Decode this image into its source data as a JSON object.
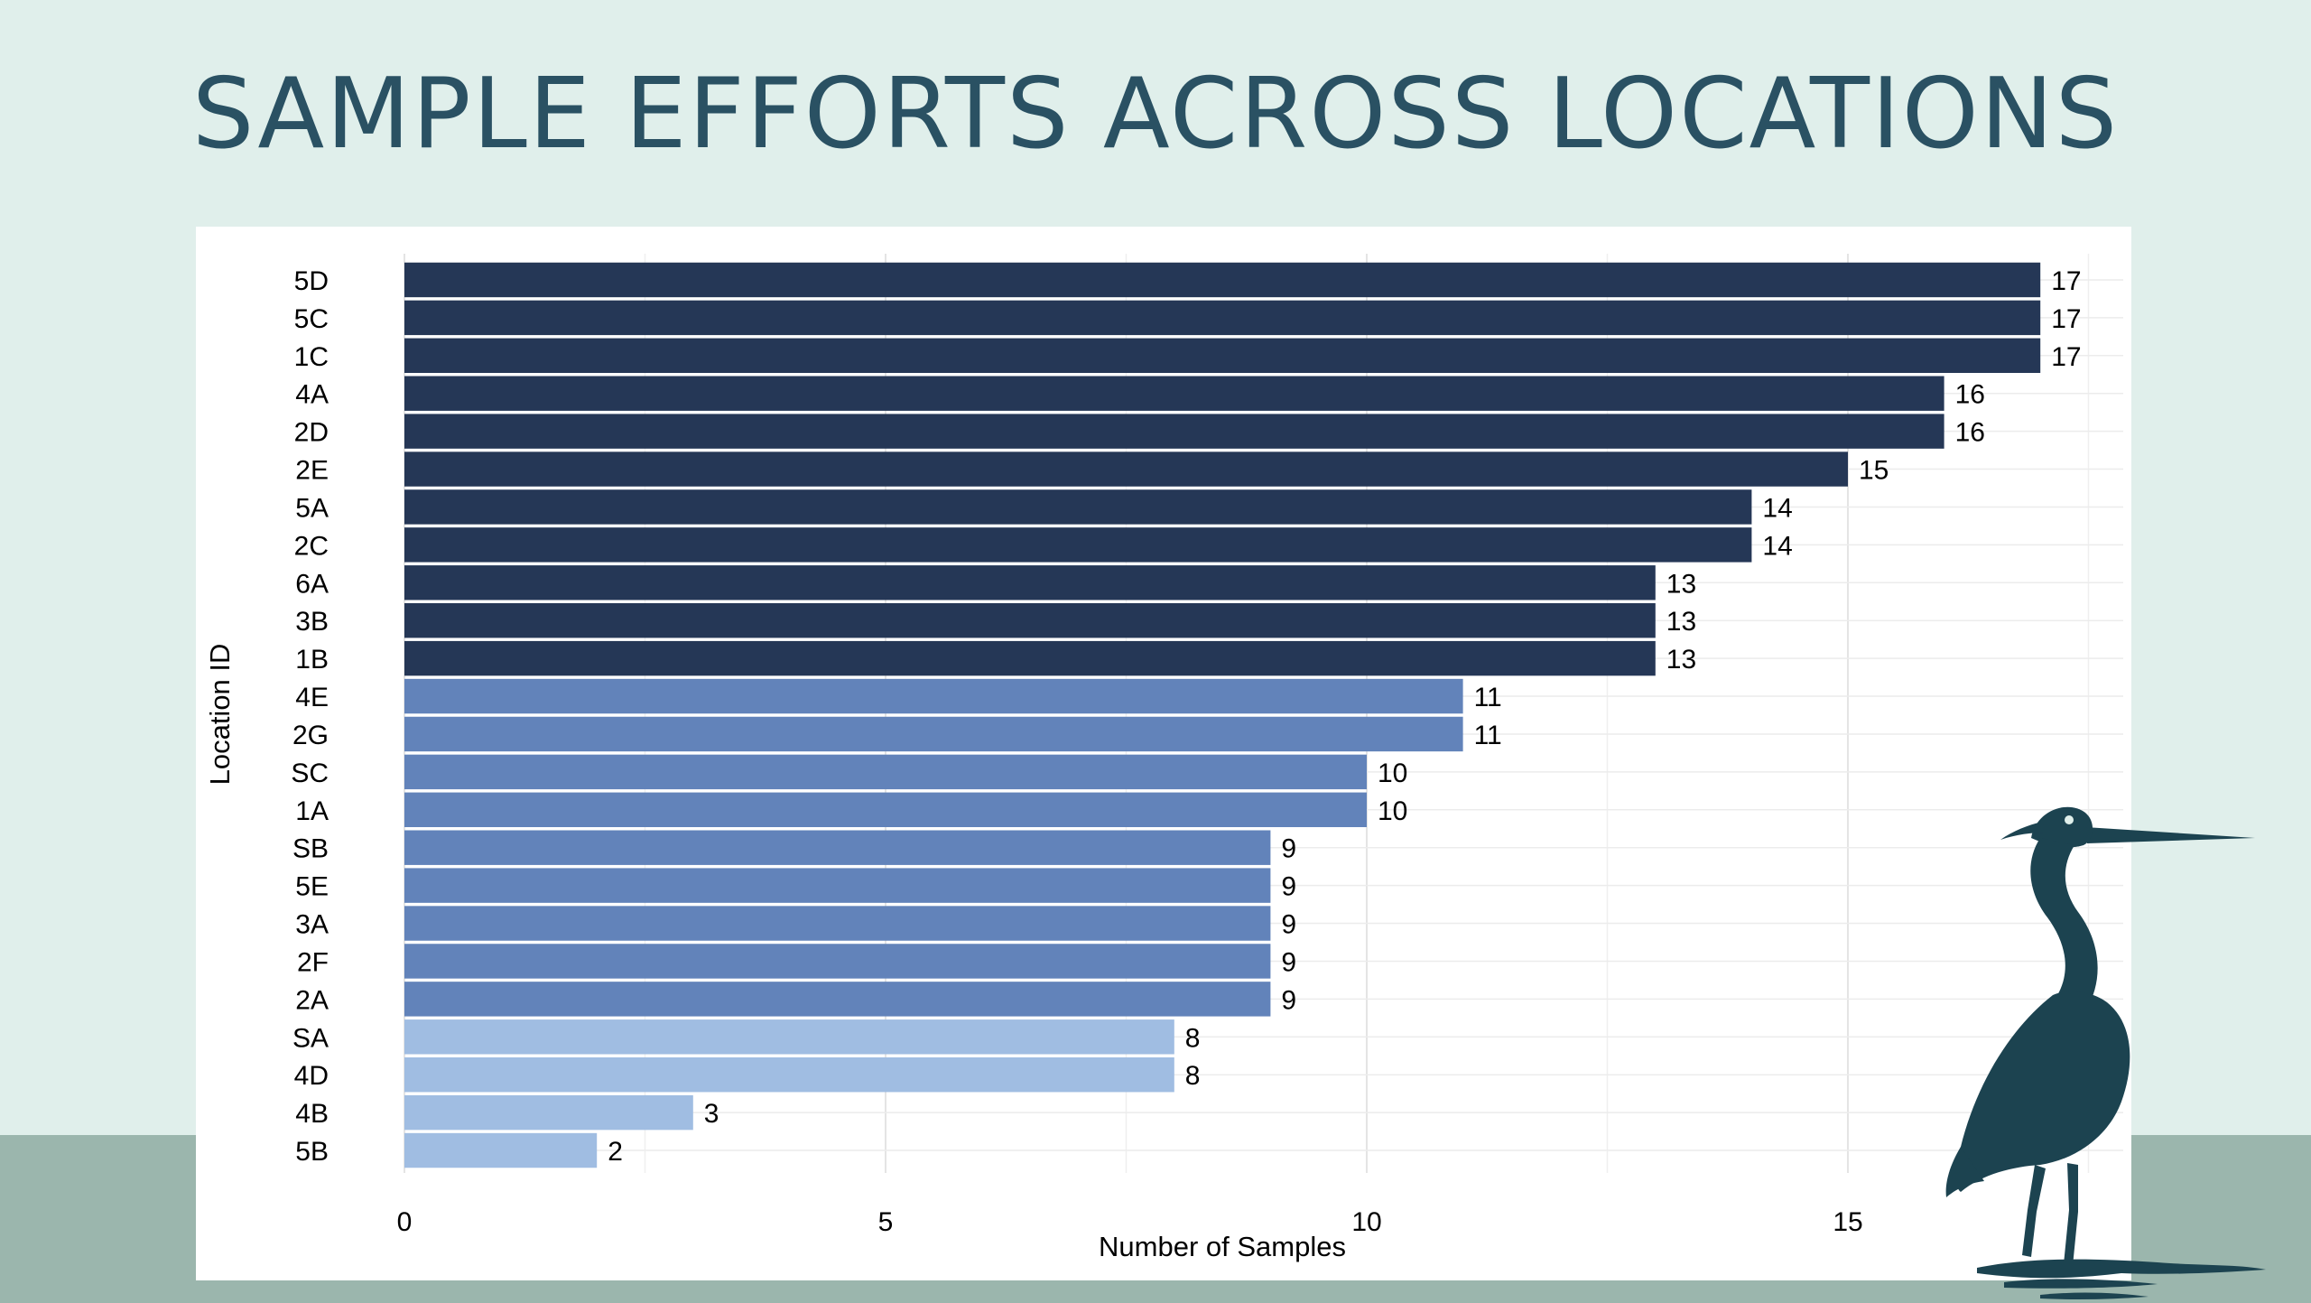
{
  "title": "SAMPLE EFFORTS ACROSS LOCATIONS",
  "colors": {
    "background": "#e0efeb",
    "ground": "#9bb6ad",
    "title": "#2a5163",
    "bar_high": "#253756",
    "bar_mid": "#6283ba",
    "bar_low": "#a0bde2",
    "heron": "#1c4350"
  },
  "decoration": {
    "illustration": "heron-icon"
  },
  "chart_data": {
    "type": "bar",
    "orientation": "horizontal",
    "xlabel": "Number of Samples",
    "ylabel": "Location ID",
    "xlim": [
      0,
      17.85
    ],
    "x_ticks": [
      0,
      5,
      10,
      15
    ],
    "grid": true,
    "data_labels": true,
    "categories": [
      "5D",
      "5C",
      "1C",
      "4A",
      "2D",
      "2E",
      "5A",
      "2C",
      "6A",
      "3B",
      "1B",
      "4E",
      "2G",
      "SC",
      "1A",
      "SB",
      "5E",
      "3A",
      "2F",
      "2A",
      "SA",
      "4D",
      "4B",
      "5B"
    ],
    "values": [
      17,
      17,
      17,
      16,
      16,
      15,
      14,
      14,
      13,
      13,
      13,
      11,
      11,
      10,
      10,
      9,
      9,
      9,
      9,
      9,
      8,
      8,
      3,
      2
    ]
  }
}
